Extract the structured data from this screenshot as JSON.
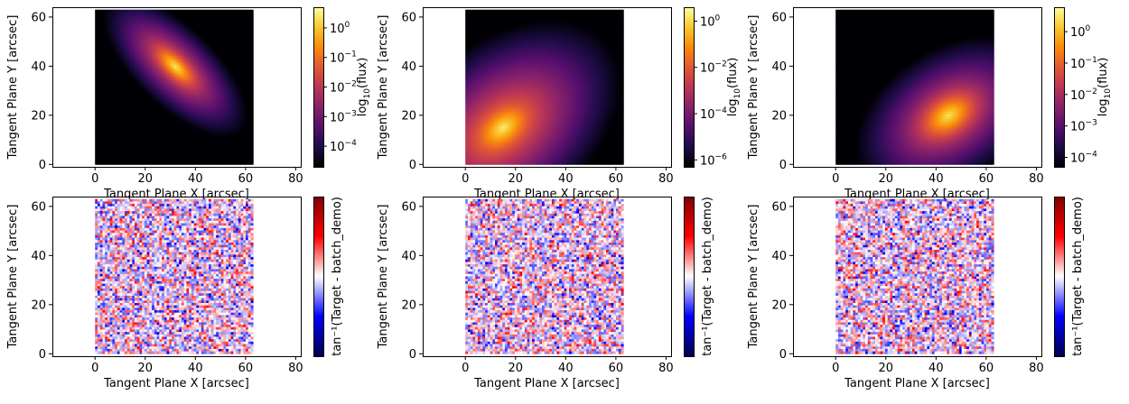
{
  "chart_data": [
    {
      "type": "heatmap",
      "panel": "flux",
      "xlabel": "Tangent Plane X [arcsec]",
      "ylabel": "Tangent Plane Y [arcsec]",
      "xlim": [
        -17,
        82
      ],
      "ylim": [
        -1,
        64
      ],
      "xticks": [
        0,
        20,
        40,
        60,
        80
      ],
      "yticks": [
        0,
        20,
        40,
        60
      ],
      "image_extent": [
        0,
        63,
        0,
        63
      ],
      "colormap": "inferno",
      "scale": "log",
      "source_center": [
        32,
        40
      ],
      "source_axes": [
        28,
        12
      ],
      "source_angle_deg": -45,
      "colorbar": {
        "label_prefix": "log",
        "label_sub": "10",
        "label_suffix": "(flux)",
        "range": [
          2e-05,
          5
        ],
        "ticks": [
          {
            "value": 0.0001,
            "base": "10",
            "exp": "−4"
          },
          {
            "value": 0.001,
            "base": "10",
            "exp": "−3"
          },
          {
            "value": 0.01,
            "base": "10",
            "exp": "−2"
          },
          {
            "value": 0.1,
            "base": "10",
            "exp": "−1"
          },
          {
            "value": 1,
            "base": "10",
            "exp": "0"
          }
        ]
      }
    },
    {
      "type": "heatmap",
      "panel": "flux",
      "xlabel": "Tangent Plane X [arcsec]",
      "ylabel": "Tangent Plane Y [arcsec]",
      "xlim": [
        -17,
        82
      ],
      "ylim": [
        -1,
        64
      ],
      "xticks": [
        0,
        20,
        40,
        60,
        80
      ],
      "yticks": [
        0,
        20,
        40,
        60
      ],
      "image_extent": [
        0,
        63,
        0,
        63
      ],
      "colormap": "inferno",
      "scale": "log",
      "source_center": [
        15,
        15
      ],
      "source_axes": [
        28,
        18
      ],
      "source_angle_deg": 40,
      "colorbar": {
        "label_prefix": "log",
        "label_sub": "10",
        "label_suffix": "(flux)",
        "range": [
          5e-07,
          4
        ],
        "ticks": [
          {
            "value": 1e-06,
            "base": "10",
            "exp": "−6"
          },
          {
            "value": 0.0001,
            "base": "10",
            "exp": "−4"
          },
          {
            "value": 0.01,
            "base": "10",
            "exp": "−2"
          },
          {
            "value": 1,
            "base": "10",
            "exp": "0"
          }
        ]
      }
    },
    {
      "type": "heatmap",
      "panel": "flux",
      "xlabel": "Tangent Plane X [arcsec]",
      "ylabel": "Tangent Plane Y [arcsec]",
      "xlim": [
        -17,
        82
      ],
      "ylim": [
        -1,
        64
      ],
      "xticks": [
        0,
        20,
        40,
        60,
        80
      ],
      "yticks": [
        0,
        20,
        40,
        60
      ],
      "image_extent": [
        0,
        63,
        0,
        63
      ],
      "colormap": "inferno",
      "scale": "log",
      "source_center": [
        45,
        20
      ],
      "source_axes": [
        34,
        22
      ],
      "source_angle_deg": 35,
      "colorbar": {
        "label_prefix": "log",
        "label_sub": "10",
        "label_suffix": "(flux)",
        "range": [
          5e-05,
          6
        ],
        "ticks": [
          {
            "value": 0.0001,
            "base": "10",
            "exp": "−4"
          },
          {
            "value": 0.001,
            "base": "10",
            "exp": "−3"
          },
          {
            "value": 0.01,
            "base": "10",
            "exp": "−2"
          },
          {
            "value": 0.1,
            "base": "10",
            "exp": "−1"
          },
          {
            "value": 1,
            "base": "10",
            "exp": "0"
          }
        ]
      }
    },
    {
      "type": "heatmap",
      "panel": "residual",
      "xlabel": "Tangent Plane X [arcsec]",
      "ylabel": "Tangent Plane Y [arcsec]",
      "xlim": [
        -17,
        82
      ],
      "ylim": [
        -1,
        64
      ],
      "xticks": [
        0,
        20,
        40,
        60,
        80
      ],
      "yticks": [
        0,
        20,
        40,
        60
      ],
      "image_extent": [
        0,
        63,
        0,
        63
      ],
      "grid_size": 64,
      "seed": 7,
      "colormap": "seismic",
      "scale": "linear",
      "colorbar": {
        "label": "tan⁻¹(Target - batch_demo)",
        "range": [
          -1.5708,
          1.5708
        ]
      }
    },
    {
      "type": "heatmap",
      "panel": "residual",
      "xlabel": "Tangent Plane X [arcsec]",
      "ylabel": "Tangent Plane Y [arcsec]",
      "xlim": [
        -17,
        82
      ],
      "ylim": [
        -1,
        64
      ],
      "xticks": [
        0,
        20,
        40,
        60,
        80
      ],
      "yticks": [
        0,
        20,
        40,
        60
      ],
      "image_extent": [
        0,
        63,
        0,
        63
      ],
      "grid_size": 64,
      "seed": 19,
      "colormap": "seismic",
      "scale": "linear",
      "colorbar": {
        "label": "tan⁻¹(Target - batch_demo)",
        "range": [
          -1.5708,
          1.5708
        ]
      }
    },
    {
      "type": "heatmap",
      "panel": "residual",
      "xlabel": "Tangent Plane X [arcsec]",
      "ylabel": "Tangent Plane Y [arcsec]",
      "xlim": [
        -17,
        82
      ],
      "ylim": [
        -1,
        64
      ],
      "xticks": [
        0,
        20,
        40,
        60,
        80
      ],
      "yticks": [
        0,
        20,
        40,
        60
      ],
      "image_extent": [
        0,
        63,
        0,
        63
      ],
      "grid_size": 64,
      "seed": 31,
      "colormap": "seismic",
      "scale": "linear",
      "colorbar": {
        "label": "tan⁻¹(Target - batch_demo)",
        "range": [
          -1.5708,
          1.5708
        ]
      }
    }
  ]
}
